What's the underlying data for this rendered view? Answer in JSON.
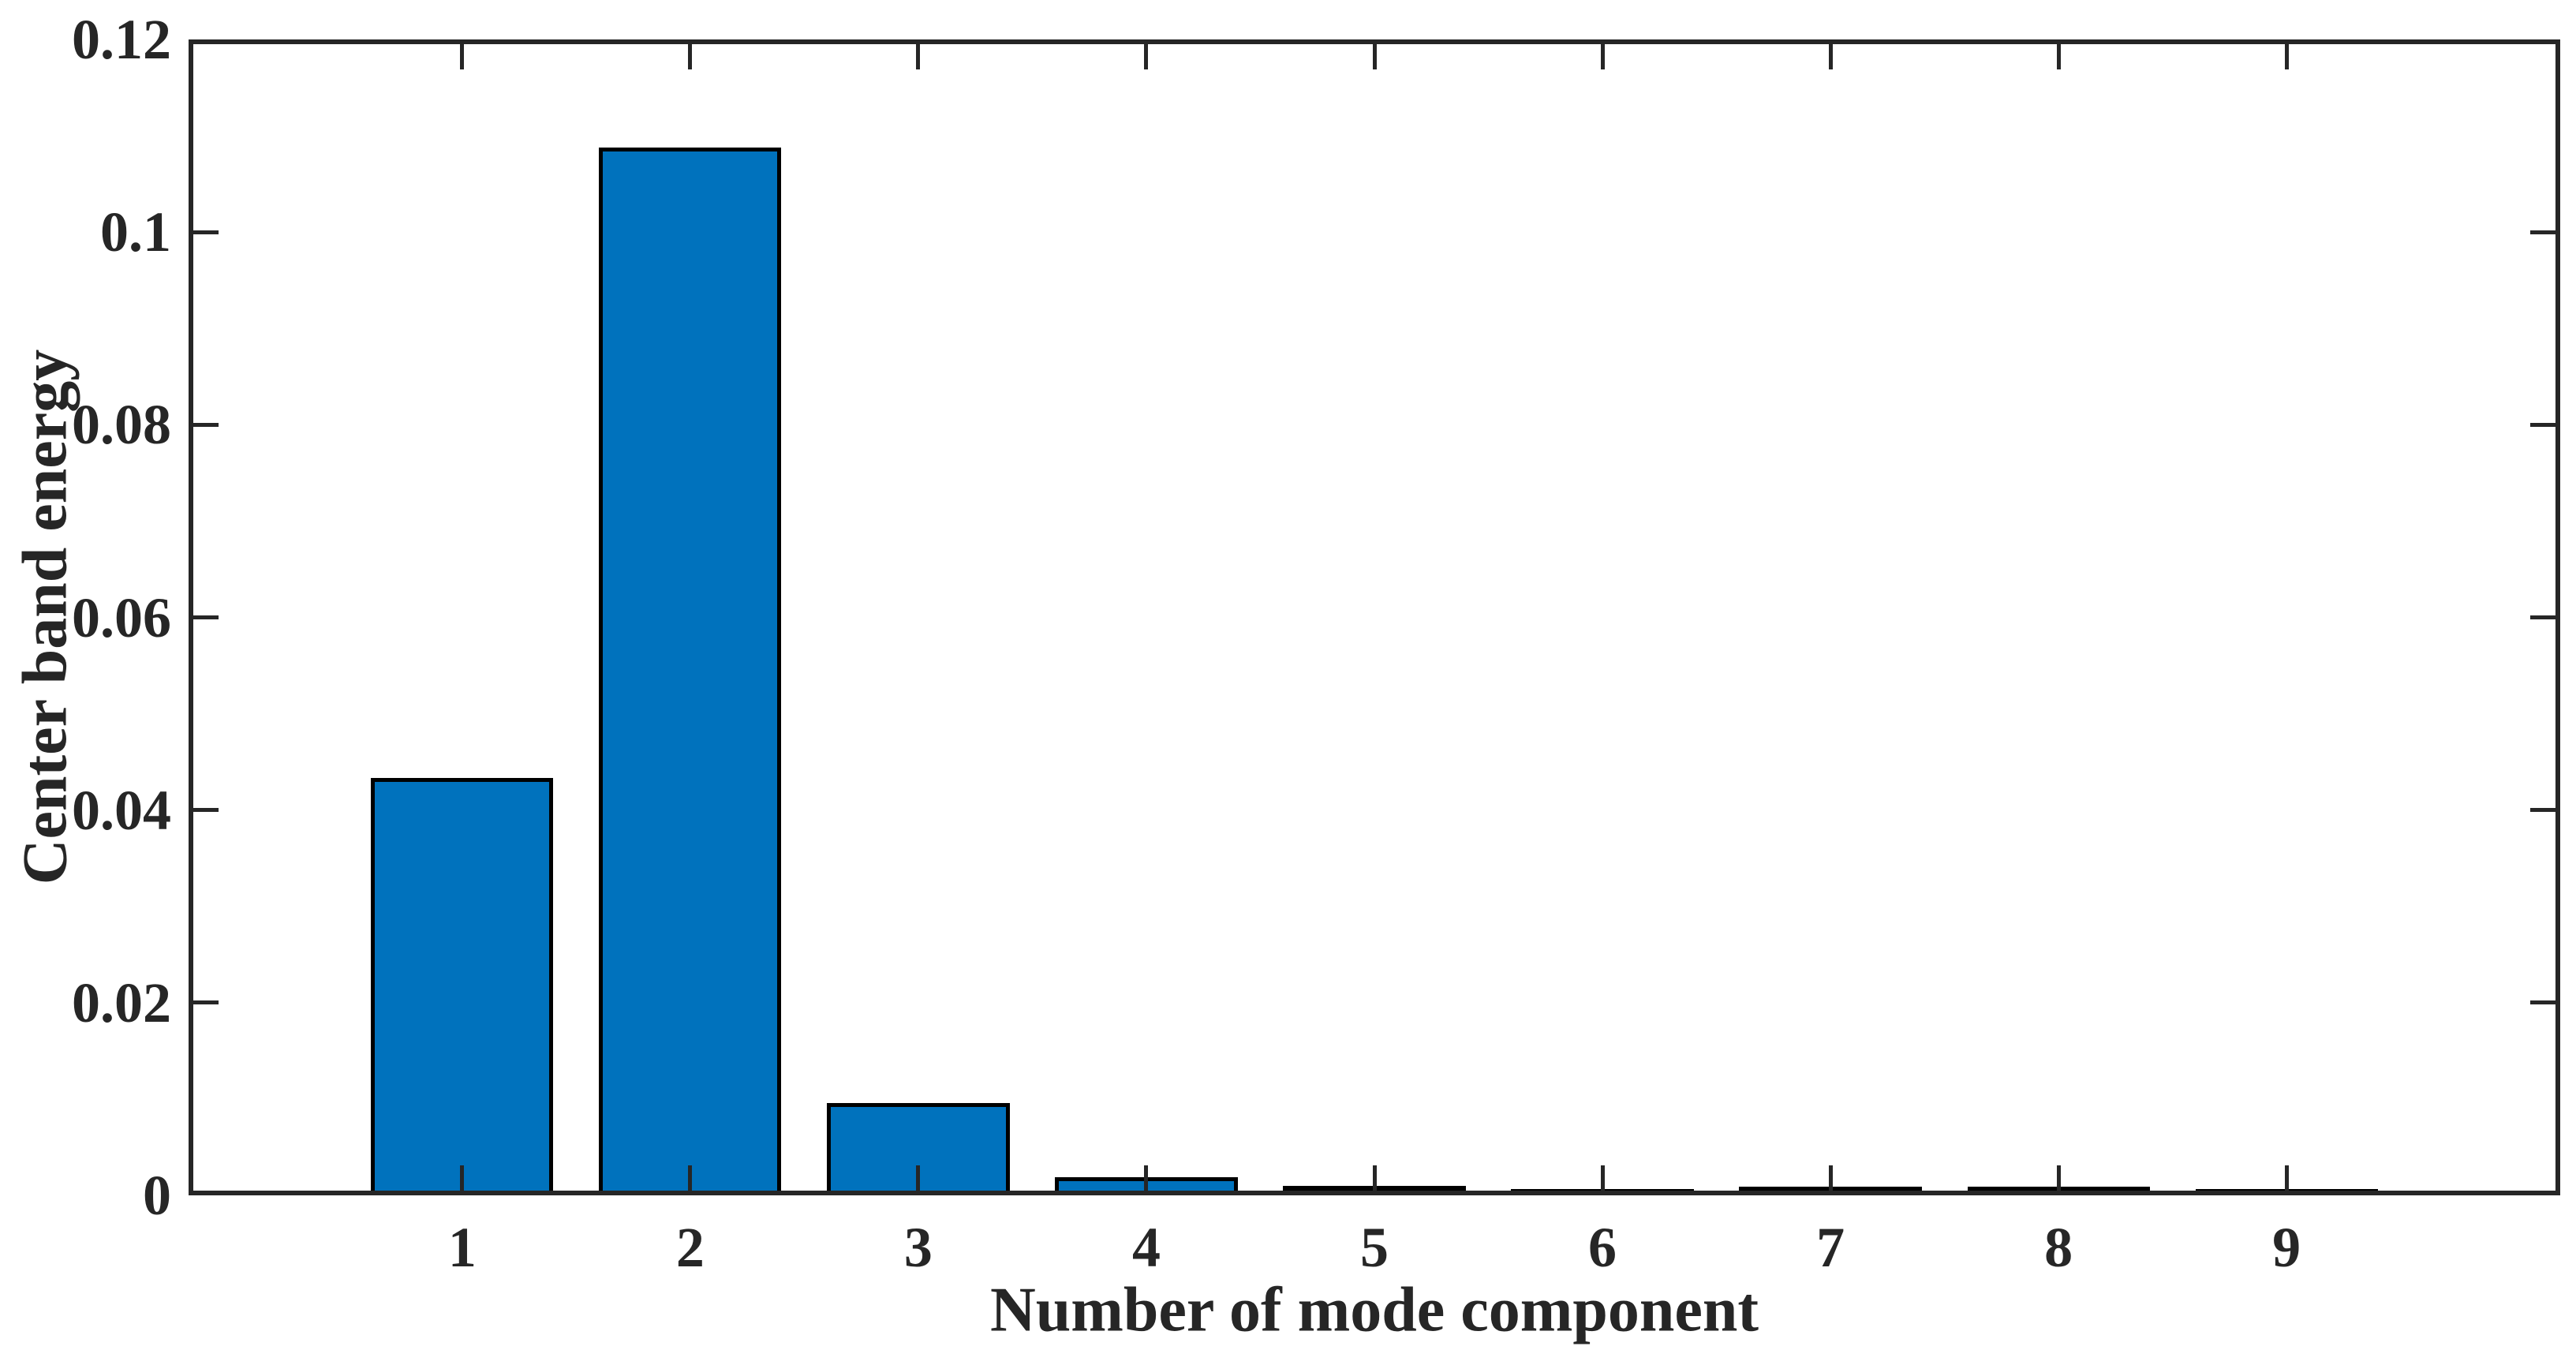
{
  "chart_data": {
    "type": "bar",
    "title": "",
    "xlabel": "Number of mode component",
    "ylabel": "Center band energy",
    "categories": [
      "1",
      "2",
      "3",
      "4",
      "5",
      "6",
      "7",
      "8",
      "9"
    ],
    "values": [
      0.0428,
      0.1083,
      0.0091,
      0.0014,
      0.0005,
      0.0002,
      0.0004,
      0.0004,
      0.0001
    ],
    "xlim": [
      -0.2,
      10.2
    ],
    "ylim": [
      0,
      0.12
    ],
    "yticks": [
      0,
      0.02,
      0.04,
      0.06,
      0.08,
      0.1,
      0.12
    ],
    "ytick_labels": [
      "0",
      "0.02",
      "0.04",
      "0.06",
      "0.08",
      "0.1",
      "0.12"
    ],
    "bar_width": 0.8,
    "grid": false,
    "legend": "none",
    "box": true,
    "tick_direction": "in",
    "colors": {
      "bar_fill": "#0072BD",
      "bar_edge": "#000000",
      "axis": "#262626",
      "text": "#262626",
      "background": "#ffffff"
    }
  }
}
